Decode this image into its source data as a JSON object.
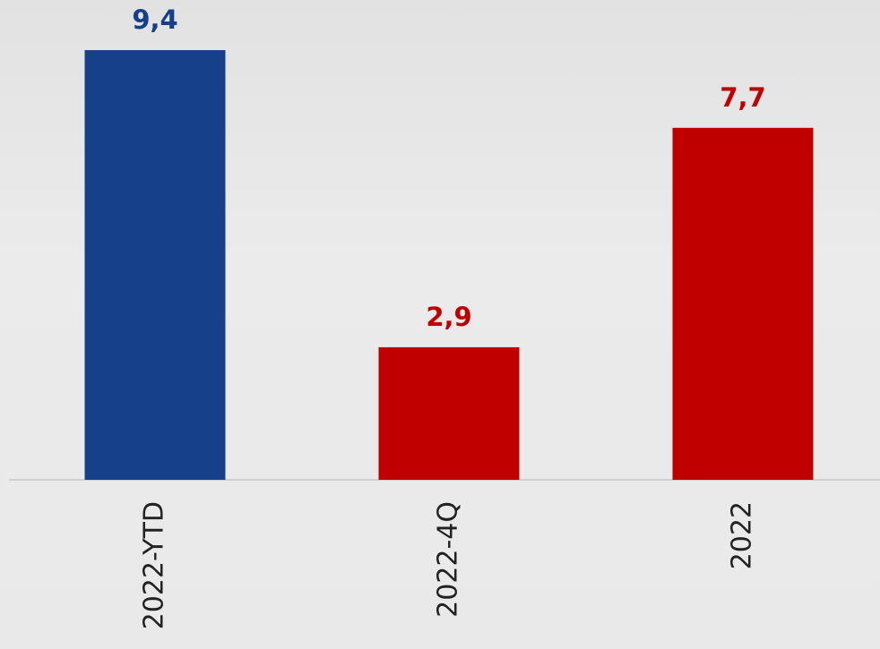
{
  "chart_data": {
    "type": "bar",
    "categories": [
      "2022-YTD",
      "2022-4Q",
      "2022"
    ],
    "values": [
      9.4,
      2.9,
      7.7
    ],
    "value_labels": [
      "9,4",
      "2,9",
      "7,7"
    ],
    "colors": [
      "#17408b",
      "#c00000",
      "#c00000"
    ]
  }
}
